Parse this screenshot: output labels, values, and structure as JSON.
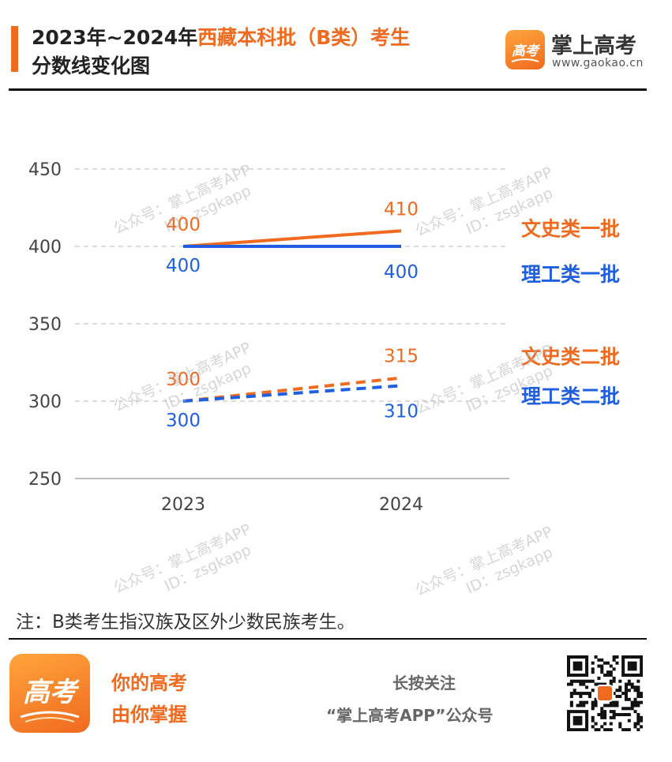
{
  "header": {
    "title_prefix": "2023年~2024年",
    "title_highlight": "西藏本科批（B类）考生",
    "title_line2": "分数线变化图"
  },
  "brand": {
    "name": "掌上高考",
    "url": "www.gaokao.cn",
    "logo_text": "高考"
  },
  "watermark": {
    "line1": "公众号：掌上高考APP",
    "line2": "ID：zsgkapp"
  },
  "chart_data": {
    "type": "line",
    "categories": [
      "2023",
      "2024"
    ],
    "ylim": [
      250,
      450
    ],
    "yticks": [
      "450",
      "400",
      "350",
      "300",
      "250"
    ],
    "grid": true,
    "legend_placement": "right",
    "series": [
      {
        "name": "文史类一批",
        "values": [
          400,
          410
        ],
        "color": "#f06a1f",
        "style": "solid"
      },
      {
        "name": "理工类一批",
        "values": [
          400,
          400
        ],
        "color": "#1f5fe0",
        "style": "solid"
      },
      {
        "name": "文史类二批",
        "values": [
          300,
          315
        ],
        "color": "#f06a1f",
        "style": "dashed"
      },
      {
        "name": "理工类二批",
        "values": [
          300,
          310
        ],
        "color": "#1f5fe0",
        "style": "dashed"
      }
    ]
  },
  "note": "注：B类考生指汉族及区外少数民族考生。",
  "footer": {
    "slogan_line1": "你的高考",
    "slogan_line2": "由你掌握",
    "follow_line1": "长按关注",
    "follow_line2": "“掌上高考APP”公众号",
    "logo_text": "高考"
  },
  "colors": {
    "accent": "#f06a1f",
    "blue": "#1f5fe0",
    "grid": "#d0d0d0"
  },
  "icons": {
    "brand_logo": "gaokao-logo-icon",
    "qr": "qr-code-icon"
  }
}
